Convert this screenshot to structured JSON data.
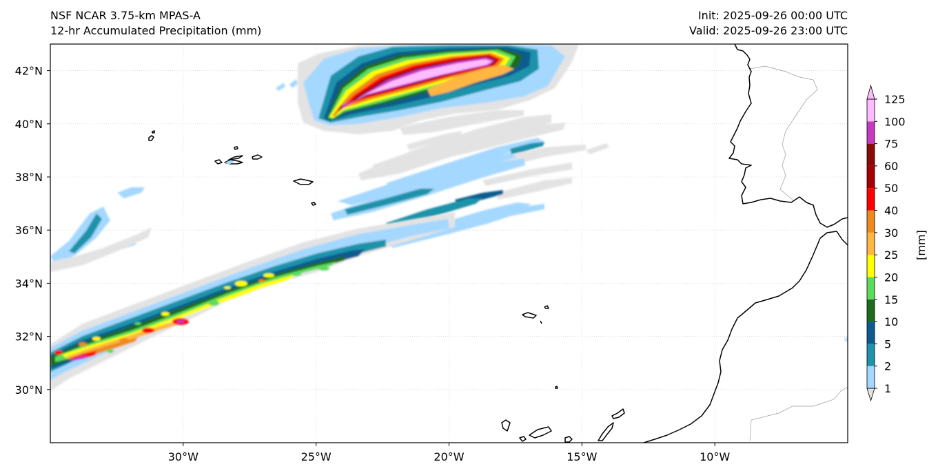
{
  "header": {
    "model": "NSF NCAR 3.75-km MPAS-A",
    "field": "12-hr Accumulated Precipitation (mm)",
    "init": "Init: 2025-09-26 00:00 UTC",
    "valid": "Valid: 2025-09-26 23:00 UTC"
  },
  "map": {
    "lon_range": [
      -35,
      -5
    ],
    "lat_range": [
      28,
      43
    ],
    "lon_ticks": [
      {
        "value": -30,
        "label": "30°W"
      },
      {
        "value": -25,
        "label": "25°W"
      },
      {
        "value": -20,
        "label": "20°W"
      },
      {
        "value": -15,
        "label": "15°W"
      },
      {
        "value": -10,
        "label": "10°W"
      }
    ],
    "lat_ticks": [
      {
        "value": 42,
        "label": "42°N"
      },
      {
        "value": 40,
        "label": "40°N"
      },
      {
        "value": 38,
        "label": "38°N"
      },
      {
        "value": 36,
        "label": "36°N"
      },
      {
        "value": 34,
        "label": "34°N"
      },
      {
        "value": 32,
        "label": "32°N"
      },
      {
        "value": 30,
        "label": "30°N"
      }
    ],
    "gridlines": true,
    "coastline_color": "#000000",
    "border_color": "#9a9a9a"
  },
  "colorbar": {
    "label": "[mm]",
    "levels": [
      "1",
      "2",
      "5",
      "10",
      "15",
      "20",
      "25",
      "30",
      "40",
      "50",
      "60",
      "75",
      "100",
      "125"
    ],
    "colors": [
      "#e3e3e3",
      "#a5d8ff",
      "#1f93aa",
      "#0b5b8e",
      "#1e6b1e",
      "#5cdc5c",
      "#ffff00",
      "#ffb642",
      "#ee8a1d",
      "#ff0000",
      "#a80000",
      "#8b0a0a",
      "#c639c0",
      "#ffbbff"
    ],
    "extend": "both"
  }
}
